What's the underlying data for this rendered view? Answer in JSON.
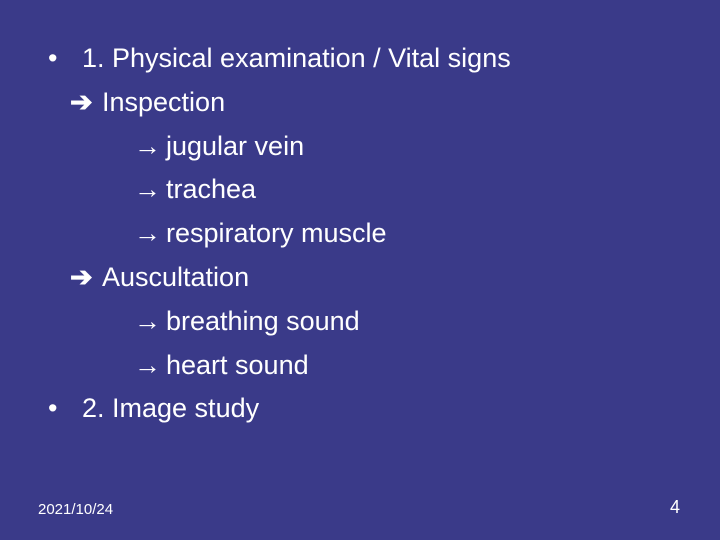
{
  "slide": {
    "background_color": "#3a3a89",
    "text_color": "#ffffff",
    "font_size_body": 27,
    "font_size_footer_date": 15,
    "font_size_footer_page": 18,
    "bullet_char": "•",
    "arrow_bold_char": "➔",
    "arrow_thin_char": "→",
    "lines": [
      {
        "type": "bullet",
        "text": "1. Physical examination / Vital signs"
      },
      {
        "type": "arrow-bold",
        "text": "Inspection"
      },
      {
        "type": "arrow-thin",
        "text": "jugular vein"
      },
      {
        "type": "arrow-thin",
        "text": "trachea"
      },
      {
        "type": "arrow-thin",
        "text": "respiratory muscle"
      },
      {
        "type": "arrow-bold",
        "text": "Auscultation"
      },
      {
        "type": "arrow-thin",
        "text": "breathing sound"
      },
      {
        "type": "arrow-thin",
        "text": "heart sound"
      },
      {
        "type": "bullet",
        "text": "2. Image study"
      }
    ],
    "footer": {
      "date": "2021/10/24",
      "page": "4"
    }
  }
}
